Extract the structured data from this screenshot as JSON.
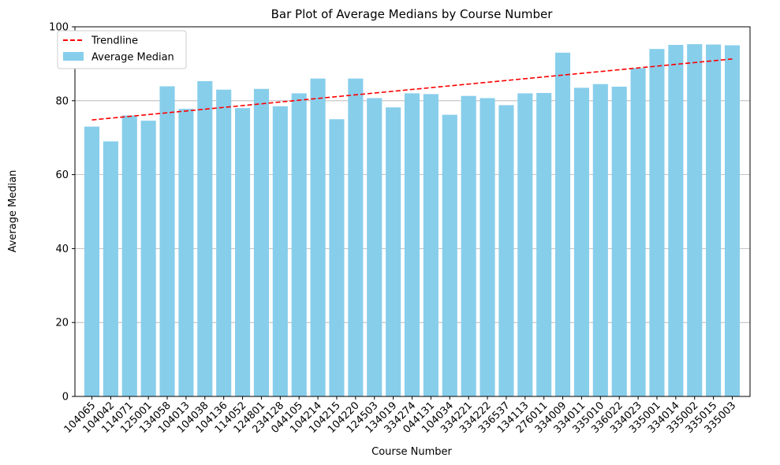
{
  "chart_data": {
    "type": "bar",
    "title": "Bar Plot of Average Medians by Course Number",
    "xlabel": "Course Number",
    "ylabel": "Average Median",
    "ylim": [
      0,
      100
    ],
    "yticks": [
      "0",
      "20",
      "40",
      "60",
      "80",
      "100"
    ],
    "grid": "y",
    "legend_position": "top-left",
    "categories": [
      "104065",
      "104042",
      "114071",
      "125001",
      "134058",
      "104013",
      "104038",
      "104136",
      "114052",
      "124801",
      "234128",
      "044105",
      "104214",
      "104215",
      "104220",
      "124503",
      "134019",
      "334274",
      "044131",
      "104034",
      "334221",
      "334222",
      "336537",
      "134113",
      "276011",
      "334009",
      "334011",
      "335010",
      "336022",
      "334023",
      "335001",
      "334014",
      "335002",
      "335015",
      "335003"
    ],
    "series": [
      {
        "name": "Average Median",
        "color": "#87ceeb",
        "values": [
          73.0,
          69.0,
          76.0,
          74.6,
          83.9,
          77.8,
          85.3,
          83.0,
          78.0,
          83.2,
          78.5,
          82.0,
          86.0,
          75.0,
          86.0,
          80.7,
          78.2,
          82.0,
          81.8,
          76.2,
          81.3,
          80.7,
          78.8,
          82.0,
          82.1,
          93.0,
          83.5,
          84.5,
          83.8,
          88.8,
          94.0,
          95.1,
          95.3,
          95.2,
          95.0
        ]
      }
    ],
    "trendline": {
      "name": "Trendline",
      "color": "#ff0000",
      "style": "dashed",
      "start": 74.8,
      "end": 91.3
    }
  }
}
